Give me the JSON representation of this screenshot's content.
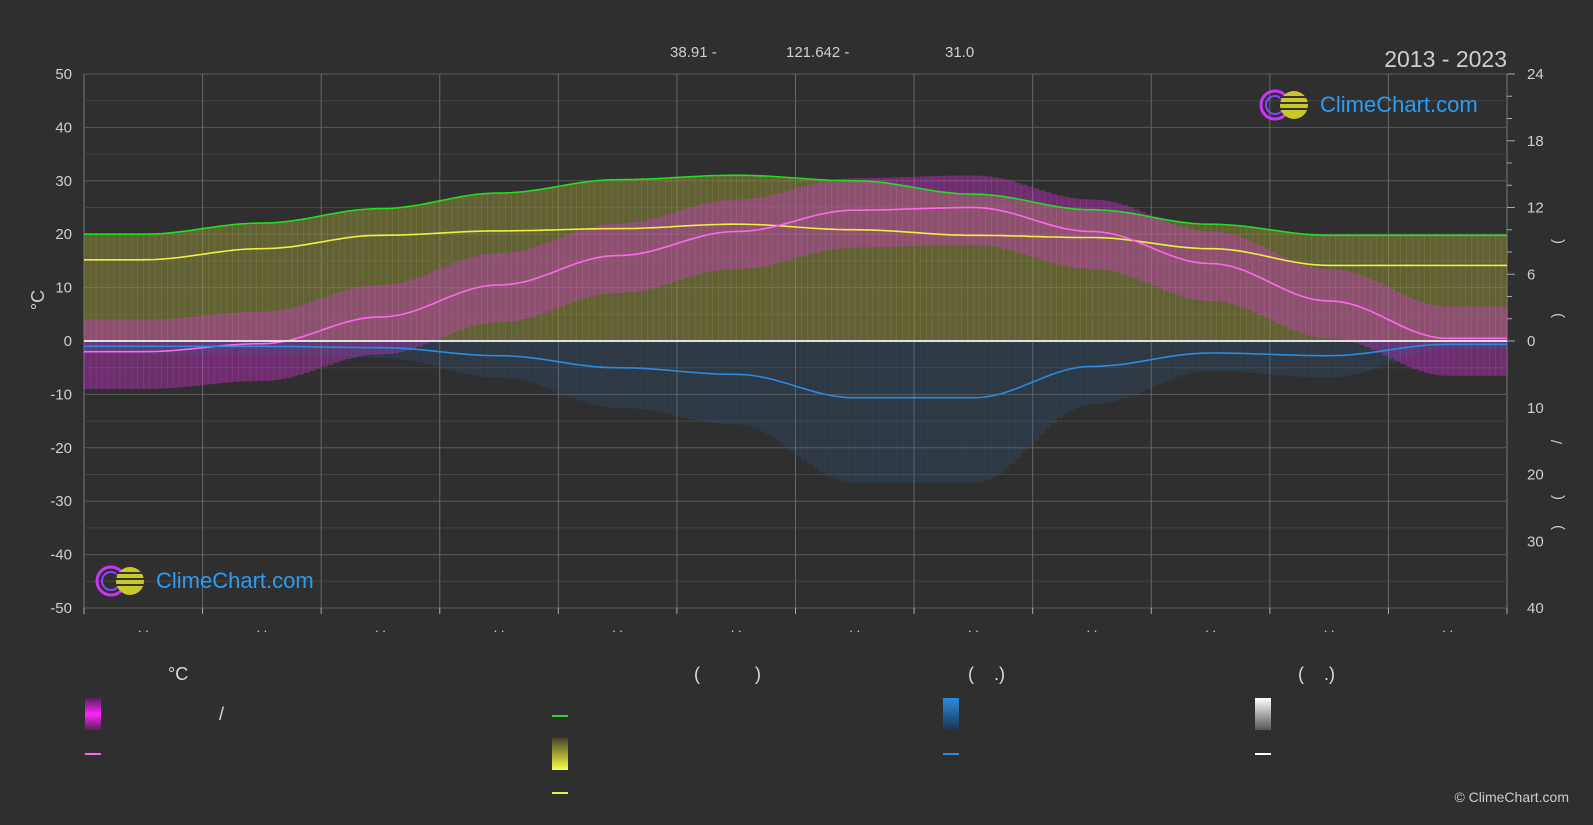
{
  "header": {
    "lat": "38.91 -",
    "lon": "121.642 -",
    "elev": "31.0",
    "years": "2013 - 2023"
  },
  "axes": {
    "left_label": "°C",
    "left_ticks": [
      "50",
      "40",
      "30",
      "20",
      "10",
      "0",
      "-10",
      "-20",
      "-30",
      "-40",
      "-50"
    ],
    "right_ticks_top": [
      "24",
      "18",
      "12",
      "6",
      "0"
    ],
    "right_ticks_bottom": [
      "10",
      "20",
      "30",
      "40"
    ],
    "right_paren_1": "(",
    "right_paren_2": ")",
    "right_paren_3": "(",
    "right_paren_4": ")",
    "right_slash": "/",
    "right_dot": "·",
    "month_ticks": [
      ". .",
      ". .",
      ". .",
      ". .",
      ". .",
      ". .",
      ". .",
      ". .",
      ". .",
      ". .",
      ". .",
      ". ."
    ]
  },
  "brand": {
    "name": "ClimeChart.com"
  },
  "legend": {
    "col1_title": "°C",
    "col1_slash": "/",
    "col2_title": "(           )",
    "col3_title": "(    .)",
    "col4_title": "(    .)"
  },
  "copyright": "© ClimeChart.com",
  "colors": {
    "background": "#2f2f2f",
    "daylight": "#22dd22",
    "sunshine": "#eeee44",
    "temperature": "#ff66ee",
    "temp_range": "#ee22ee",
    "precip": "#2a8be0",
    "snow": "#ffffff",
    "brand": "#2a9df4"
  },
  "chart_data": {
    "type": "area",
    "x": [
      "Jan",
      "Feb",
      "Mar",
      "Apr",
      "May",
      "Jun",
      "Jul",
      "Aug",
      "Sep",
      "Oct",
      "Nov",
      "Dec"
    ],
    "y_left_range": [
      -50,
      50
    ],
    "y_right_top_range": [
      0,
      24
    ],
    "y_right_bottom_range": [
      0,
      40
    ],
    "series": [
      {
        "key": "daylight",
        "values": [
          9.6,
          10.6,
          11.9,
          13.3,
          14.5,
          14.9,
          14.4,
          13.2,
          11.8,
          10.5,
          9.5,
          9.5
        ]
      },
      {
        "key": "sunshine",
        "values": [
          7.3,
          8.3,
          9.5,
          9.9,
          10.1,
          10.5,
          10.0,
          9.5,
          9.3,
          8.3,
          6.8,
          6.8
        ]
      },
      {
        "key": "mean_temp",
        "values": [
          -2.0,
          -0.5,
          4.5,
          10.5,
          16.0,
          20.5,
          24.5,
          25.0,
          20.5,
          14.5,
          7.5,
          0.5
        ]
      },
      {
        "key": "precip_mm",
        "values": [
          0.8,
          0.8,
          1.0,
          2.2,
          4.0,
          5.0,
          8.5,
          8.5,
          3.8,
          1.8,
          2.2,
          0.5
        ]
      }
    ]
  }
}
